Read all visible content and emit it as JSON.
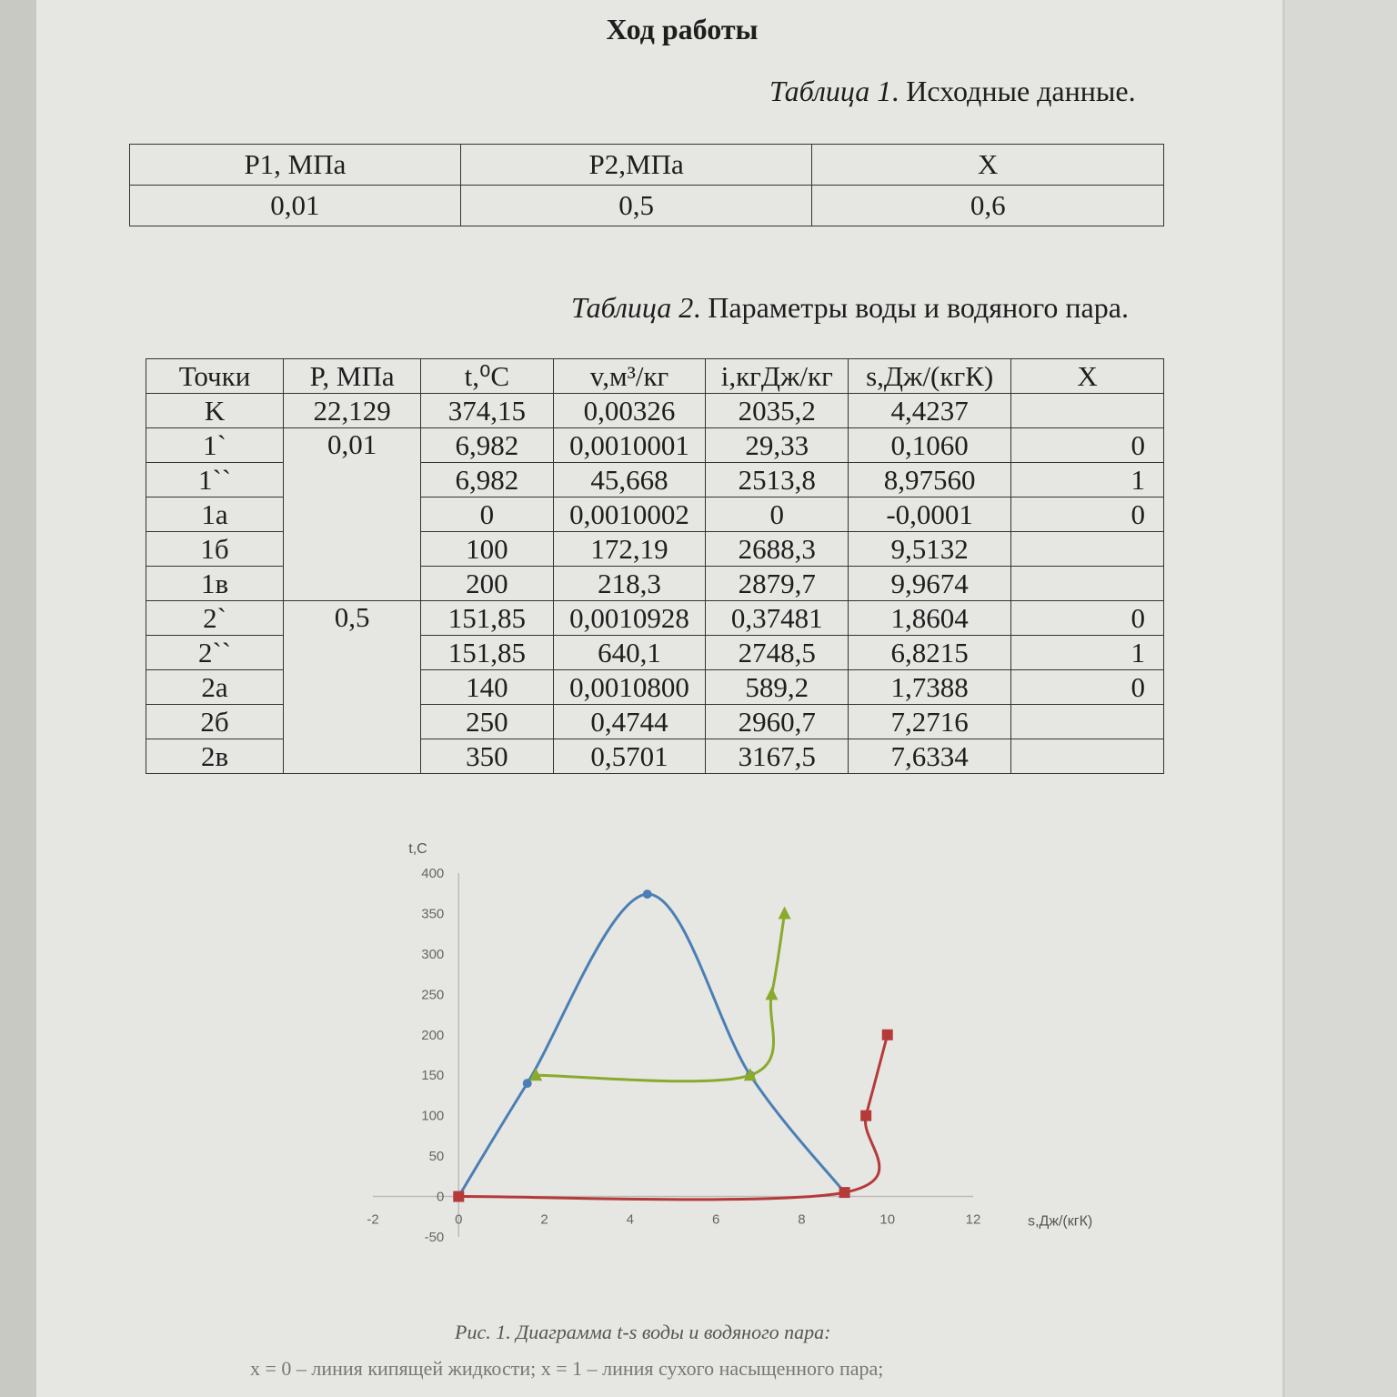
{
  "heading": "Ход работы",
  "table1": {
    "caption_label": "Таблица 1",
    "caption_text": ". Исходные данные.",
    "headers": [
      "P1, МПа",
      "P2,МПа",
      "X"
    ],
    "values": [
      "0,01",
      "0,5",
      "0,6"
    ]
  },
  "table2": {
    "caption_label": "Таблица 2",
    "caption_text": ". Параметры воды и водяного пара.",
    "headers": [
      "Точки",
      "P, МПа",
      "t,⁰C",
      "v,м³/кг",
      "i,кгДж/кг",
      "s,Дж/(кгК)",
      "X"
    ],
    "rows": [
      {
        "point": "K",
        "p": "22,129",
        "t": "374,15",
        "v": "0,00326",
        "i": "2035,2",
        "s": "4,4237",
        "x": ""
      },
      {
        "point": "1`",
        "p": "0,01",
        "t": "6,982",
        "v": "0,0010001",
        "i": "29,33",
        "s": "0,1060",
        "x": "0"
      },
      {
        "point": "1``",
        "p": "",
        "t": "6,982",
        "v": "45,668",
        "i": "2513,8",
        "s": "8,97560",
        "x": "1"
      },
      {
        "point": "1a",
        "p": "",
        "t": "0",
        "v": "0,0010002",
        "i": "0",
        "s": "-0,0001",
        "x": "0"
      },
      {
        "point": "1б",
        "p": "",
        "t": "100",
        "v": "172,19",
        "i": "2688,3",
        "s": "9,5132",
        "x": ""
      },
      {
        "point": "1в",
        "p": "",
        "t": "200",
        "v": "218,3",
        "i": "2879,7",
        "s": "9,9674",
        "x": ""
      },
      {
        "point": "2`",
        "p": "0,5",
        "t": "151,85",
        "v": "0,0010928",
        "i": "0,37481",
        "s": "1,8604",
        "x": "0"
      },
      {
        "point": "2``",
        "p": "",
        "t": "151,85",
        "v": "640,1",
        "i": "2748,5",
        "s": "6,8215",
        "x": "1"
      },
      {
        "point": "2a",
        "p": "",
        "t": "140",
        "v": "0,0010800",
        "i": "589,2",
        "s": "1,7388",
        "x": "0"
      },
      {
        "point": "2б",
        "p": "",
        "t": "250",
        "v": "0,4744",
        "i": "2960,7",
        "s": "7,2716",
        "x": ""
      },
      {
        "point": "2в",
        "p": "",
        "t": "350",
        "v": "0,5701",
        "i": "3167,5",
        "s": "7,6334",
        "x": ""
      }
    ]
  },
  "chart_data": {
    "type": "scatter",
    "xlabel": "s,Дж/(кгК)",
    "ylabel": "t,C",
    "xlim": [
      -2,
      12
    ],
    "ylim": [
      -50,
      400
    ],
    "xticks": [
      -2,
      0,
      2,
      4,
      6,
      8,
      10,
      12
    ],
    "yticks": [
      -50,
      0,
      50,
      100,
      150,
      200,
      250,
      300,
      350,
      400
    ],
    "grid": false,
    "series": [
      {
        "color": "#4a7fb5",
        "marker": "circle",
        "x": [
          0,
          1.6,
          4.4,
          6.8,
          9.0
        ],
        "y": [
          0,
          140,
          374,
          150,
          5
        ]
      },
      {
        "color": "#8aaa2e",
        "marker": "triangle",
        "x": [
          1.8,
          6.8,
          7.3,
          7.6
        ],
        "y": [
          150,
          150,
          250,
          350
        ]
      },
      {
        "color": "#b53a3a",
        "marker": "square",
        "x": [
          0,
          9.0,
          9.5,
          10.0
        ],
        "y": [
          0,
          5,
          100,
          200
        ]
      }
    ]
  },
  "figure_caption": "Рис. 1. Диаграмма t-s воды и водяного пара:",
  "note_text": "x = 0 – линия кипящей жидкости; x = 1 – линия сухого насыщенного пара;"
}
